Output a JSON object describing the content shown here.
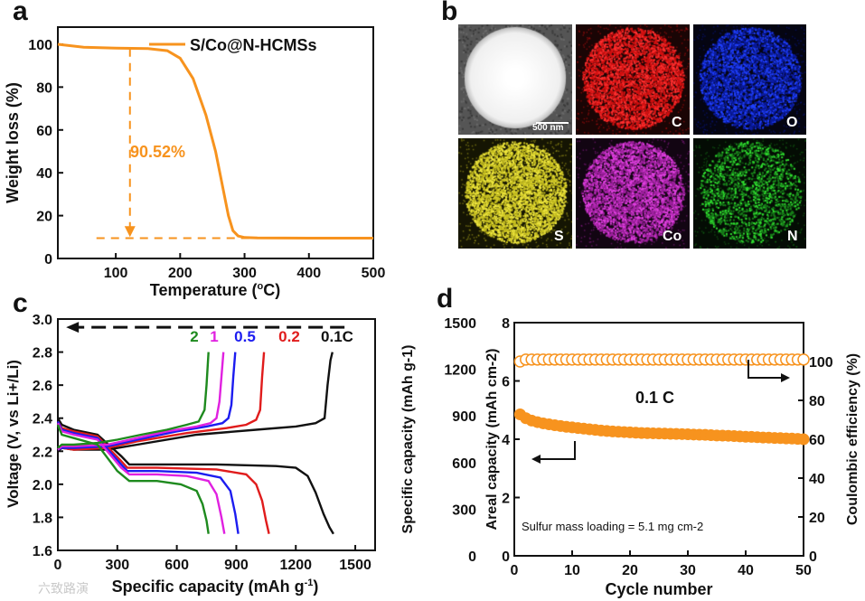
{
  "panels": {
    "a": {
      "letter": "a",
      "legend": "S/Co@N-HCMSs",
      "annotation": "90.52%",
      "xlabel_main": "Temperature (",
      "xlabel_sup": "o",
      "xlabel_end": "C)",
      "ylabel": "Weight loss (%)"
    },
    "b": {
      "letter": "b",
      "tiles": [
        {
          "label": "",
          "scale": "500 nm",
          "color": "#f2f2f2",
          "bg": "#2b2b2b",
          "dot": "#ffffff"
        },
        {
          "label": "C",
          "color": "#d11010",
          "bg": "#1a0505",
          "dot": "#ff3030"
        },
        {
          "label": "O",
          "color": "#0a1a9c",
          "bg": "#050512",
          "dot": "#2040ff"
        },
        {
          "label": "S",
          "color": "#c8c020",
          "bg": "#151503",
          "dot": "#f0e840"
        },
        {
          "label": "Co",
          "color": "#a020a0",
          "bg": "#120512",
          "dot": "#e040e0"
        },
        {
          "label": "N",
          "color": "#18801a",
          "bg": "#040c04",
          "dot": "#30e030"
        }
      ]
    },
    "c": {
      "letter": "c",
      "xlabel_main": "Specific capacity (mAh g",
      "xlabel_sup": "-1",
      "xlabel_end": ")",
      "ylabel": "Voltage (V, vs Li+/Li)"
    },
    "d": {
      "letter": "d",
      "rate_label": "0.1 C",
      "loading_text": "Sulfur mass loading = 5.1 mg cm-2",
      "xlabel": "Cycle number",
      "ylabel_left": "Specific capacity (mAh g-1)",
      "ylabel_areal": "Areal capacity (mAh cm-2)",
      "ylabel_right": "Coulombic efficiency (%)"
    }
  },
  "watermark": "六致路演",
  "colors": {
    "orange": "#f7931e",
    "green": "#1e8a1e",
    "magenta": "#e020e0",
    "blue": "#1c1cf0",
    "red": "#e01c1c",
    "black": "#111111"
  },
  "chart_data": [
    {
      "panel": "a",
      "type": "line",
      "title": "",
      "xlabel": "Temperature (oC)",
      "ylabel": "Weight loss (%)",
      "xlim": [
        10,
        500
      ],
      "ylim": [
        0,
        108
      ],
      "xticks": [
        100,
        200,
        300,
        400,
        500
      ],
      "yticks": [
        0,
        20,
        40,
        60,
        80,
        100
      ],
      "series": [
        {
          "name": "S/Co@N-HCMSs",
          "color": "#f7931e",
          "x": [
            10,
            50,
            100,
            150,
            180,
            200,
            220,
            240,
            255,
            265,
            275,
            282,
            290,
            300,
            320,
            400,
            500
          ],
          "y": [
            100,
            98.6,
            98.2,
            98.0,
            97.0,
            93.5,
            84,
            67,
            50,
            35,
            20,
            13,
            10.5,
            9.8,
            9.6,
            9.5,
            9.48
          ]
        }
      ],
      "annotation": {
        "text": "90.52%",
        "x": 122,
        "from_y": 98,
        "to_y": 10
      },
      "guide_y": 9.48
    },
    {
      "panel": "c",
      "type": "line",
      "title": "",
      "xlabel": "Specific capacity (mAh g-1)",
      "ylabel": "Voltage (V, vs Li+/Li)",
      "xlim": [
        0,
        1600
      ],
      "ylim": [
        1.6,
        3.0
      ],
      "xticks": [
        0,
        300,
        600,
        900,
        1200,
        1500
      ],
      "yticks": [
        1.6,
        1.8,
        2.0,
        2.2,
        2.4,
        2.6,
        2.8,
        3.0
      ],
      "series": [
        {
          "name": "0.1C",
          "color": "#111111",
          "discharge": {
            "x": [
              0,
              20,
              80,
              200,
              320,
              360,
              500,
              800,
              1100,
              1200,
              1260,
              1300,
              1340,
              1370,
              1390
            ],
            "y": [
              2.4,
              2.36,
              2.33,
              2.3,
              2.17,
              2.12,
              2.12,
              2.12,
              2.11,
              2.1,
              2.05,
              1.95,
              1.82,
              1.74,
              1.7
            ]
          },
          "charge": {
            "x": [
              0,
              20,
              80,
              250,
              400,
              700,
              1000,
              1200,
              1300,
              1345,
              1360,
              1375,
              1385
            ],
            "y": [
              2.2,
              2.22,
              2.21,
              2.21,
              2.24,
              2.3,
              2.33,
              2.35,
              2.37,
              2.4,
              2.6,
              2.75,
              2.8
            ]
          }
        },
        {
          "name": "0.2",
          "color": "#e01c1c",
          "discharge": {
            "x": [
              0,
              20,
              80,
              200,
              320,
              350,
              500,
              800,
              950,
              1000,
              1030,
              1050,
              1065
            ],
            "y": [
              2.38,
              2.34,
              2.32,
              2.29,
              2.14,
              2.1,
              2.1,
              2.09,
              2.06,
              2.0,
              1.9,
              1.78,
              1.7
            ]
          },
          "charge": {
            "x": [
              0,
              20,
              80,
              250,
              400,
              650,
              850,
              950,
              1000,
              1020,
              1030,
              1040
            ],
            "y": [
              2.21,
              2.22,
              2.21,
              2.22,
              2.26,
              2.31,
              2.34,
              2.36,
              2.39,
              2.45,
              2.65,
              2.8
            ]
          }
        },
        {
          "name": "0.5",
          "color": "#1c1cf0",
          "discharge": {
            "x": [
              0,
              20,
              80,
              200,
              320,
              350,
              500,
              700,
              820,
              870,
              895,
              910
            ],
            "y": [
              2.38,
              2.33,
              2.31,
              2.28,
              2.12,
              2.08,
              2.08,
              2.07,
              2.04,
              1.96,
              1.82,
              1.7
            ]
          },
          "charge": {
            "x": [
              0,
              20,
              80,
              250,
              400,
              600,
              750,
              830,
              860,
              875,
              885,
              895
            ],
            "y": [
              2.21,
              2.22,
              2.22,
              2.23,
              2.27,
              2.32,
              2.35,
              2.37,
              2.4,
              2.48,
              2.65,
              2.8
            ]
          }
        },
        {
          "name": "1",
          "color": "#e020e0",
          "discharge": {
            "x": [
              0,
              20,
              80,
              200,
              320,
              360,
              500,
              650,
              760,
              800,
              825,
              840
            ],
            "y": [
              2.37,
              2.32,
              2.3,
              2.27,
              2.1,
              2.06,
              2.06,
              2.05,
              2.02,
              1.94,
              1.8,
              1.7
            ]
          },
          "charge": {
            "x": [
              0,
              20,
              80,
              250,
              400,
              550,
              700,
              770,
              800,
              815,
              825,
              835
            ],
            "y": [
              2.21,
              2.23,
              2.23,
              2.24,
              2.28,
              2.32,
              2.35,
              2.37,
              2.4,
              2.5,
              2.65,
              2.8
            ]
          }
        },
        {
          "name": "2",
          "color": "#1e8a1e",
          "discharge": {
            "x": [
              0,
              20,
              80,
              200,
              300,
              360,
              500,
              620,
              700,
              730,
              750,
              760
            ],
            "y": [
              2.36,
              2.3,
              2.28,
              2.24,
              2.08,
              2.02,
              2.02,
              2.0,
              1.96,
              1.88,
              1.78,
              1.7
            ]
          },
          "charge": {
            "x": [
              0,
              20,
              80,
              200,
              300,
              420,
              550,
              650,
              710,
              740,
              750,
              760
            ],
            "y": [
              2.22,
              2.24,
              2.24,
              2.25,
              2.27,
              2.3,
              2.33,
              2.36,
              2.38,
              2.45,
              2.6,
              2.8
            ]
          }
        }
      ],
      "rate_labels": [
        "2",
        "1",
        "0.5",
        "0.2",
        "0.1C"
      ],
      "arrow_voltage": 2.95
    },
    {
      "panel": "d",
      "type": "scatter",
      "title": "",
      "xlabel": "Cycle number",
      "ylabel": "Specific capacity (mAh g-1)",
      "ylabel_secondary": "Areal capacity (mAh cm-2)",
      "ylabel_right": "Coulombic efficiency (%)",
      "xlim": [
        0,
        50
      ],
      "ylim": [
        0,
        1500
      ],
      "y_areal_lim": [
        0,
        8
      ],
      "y_right_lim": [
        0,
        120
      ],
      "xticks": [
        0,
        10,
        20,
        30,
        40,
        50
      ],
      "yticks": [
        0,
        300,
        600,
        900,
        1200,
        1500
      ],
      "yticks_areal": [
        0,
        2,
        4,
        6,
        8
      ],
      "yticks_right": [
        0,
        20,
        40,
        60,
        80,
        100
      ],
      "series": [
        {
          "name": "Specific capacity",
          "color": "#f7931e",
          "marker": "filled",
          "x": [
            1,
            2,
            3,
            4,
            5,
            6,
            7,
            8,
            9,
            10,
            11,
            12,
            13,
            14,
            15,
            16,
            17,
            18,
            19,
            20,
            21,
            22,
            23,
            24,
            25,
            26,
            27,
            28,
            29,
            30,
            31,
            32,
            33,
            34,
            35,
            36,
            37,
            38,
            39,
            40,
            41,
            42,
            43,
            44,
            45,
            46,
            47,
            48,
            49,
            50
          ],
          "y": [
            910,
            885,
            870,
            860,
            852,
            846,
            840,
            835,
            830,
            826,
            822,
            818,
            814,
            810,
            806,
            803,
            800,
            798,
            796,
            794,
            792,
            790,
            789,
            788,
            787,
            786,
            785,
            784,
            783,
            782,
            780,
            779,
            778,
            776,
            774,
            773,
            772,
            770,
            768,
            766,
            765,
            763,
            761,
            760,
            758,
            757,
            755,
            754,
            752,
            750
          ]
        },
        {
          "name": "Coulombic efficiency",
          "color": "#f7931e",
          "marker": "open",
          "axis": "right",
          "x": [
            1,
            2,
            3,
            4,
            5,
            6,
            7,
            8,
            9,
            10,
            11,
            12,
            13,
            14,
            15,
            16,
            17,
            18,
            19,
            20,
            21,
            22,
            23,
            24,
            25,
            26,
            27,
            28,
            29,
            30,
            31,
            32,
            33,
            34,
            35,
            36,
            37,
            38,
            39,
            40,
            41,
            42,
            43,
            44,
            45,
            46,
            47,
            48,
            49,
            50
          ],
          "y": [
            100,
            101,
            101,
            101,
            101,
            101,
            101,
            101,
            101,
            101,
            101,
            101,
            101,
            101,
            101,
            101,
            101,
            101,
            101,
            101,
            101,
            101,
            101,
            101,
            101,
            101,
            101,
            101,
            101,
            101,
            101,
            101,
            101,
            101,
            101,
            101,
            101,
            101,
            101,
            101,
            101,
            101,
            101,
            101,
            101,
            101,
            101,
            101,
            101,
            101
          ]
        }
      ]
    }
  ]
}
